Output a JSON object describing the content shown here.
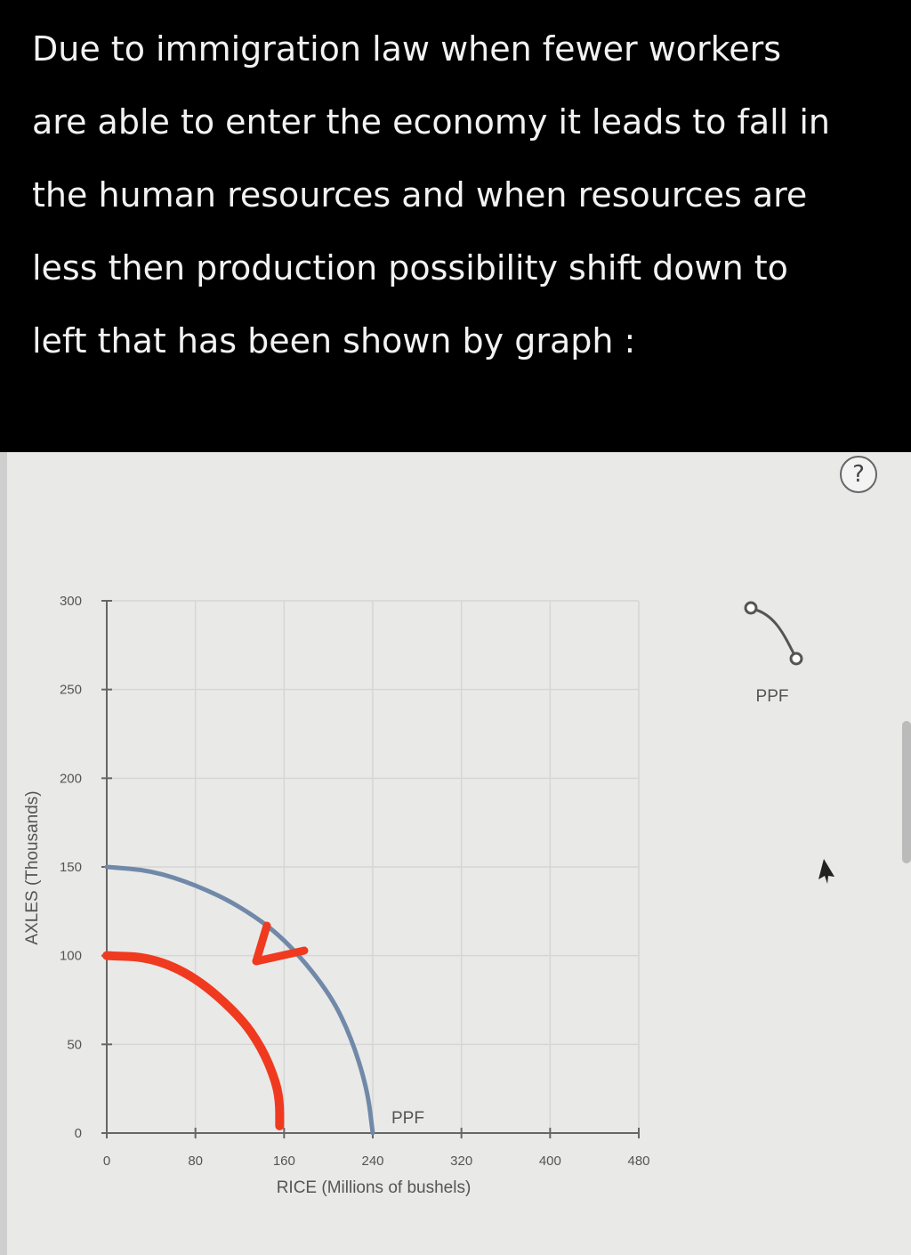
{
  "answer": {
    "lines": [
      "Due to immigration law when fewer workers",
      "are able to enter the economy it leads to fall in",
      "the human resources and when resources are",
      "less then production possibility shift down to",
      "left that has been shown by graph :"
    ]
  },
  "help_icon": "?",
  "legend": {
    "label": "PPF",
    "icon": "curve-with-endpoints-icon"
  },
  "chart_data": {
    "type": "line",
    "xlabel": "RICE (Millions of bushels)",
    "ylabel": "AXLES (Thousands)",
    "xlim": [
      0,
      480
    ],
    "ylim": [
      0,
      300
    ],
    "xticks": [
      "0",
      "80",
      "160",
      "240",
      "320",
      "400",
      "480"
    ],
    "yticks": [
      "0",
      "50",
      "100",
      "150",
      "200",
      "250",
      "300"
    ],
    "grid": true,
    "legend_position": "top-right",
    "series": [
      {
        "name": "PPF",
        "color": "#7189a8",
        "x": [
          0,
          40,
          80,
          120,
          160,
          200,
          220,
          235,
          240
        ],
        "y": [
          150,
          148,
          140,
          128,
          110,
          80,
          55,
          25,
          0
        ]
      },
      {
        "color": "#f03a1f",
        "x": [
          0,
          40,
          80,
          120,
          140,
          152,
          156,
          156
        ],
        "y": [
          100,
          99,
          88,
          66,
          48,
          30,
          18,
          4
        ]
      }
    ],
    "annotations": [
      {
        "text": "PPF",
        "x": 250,
        "y": 8
      },
      {
        "type": "arrow",
        "color": "#f03a1f",
        "direction": "down-left"
      }
    ]
  }
}
